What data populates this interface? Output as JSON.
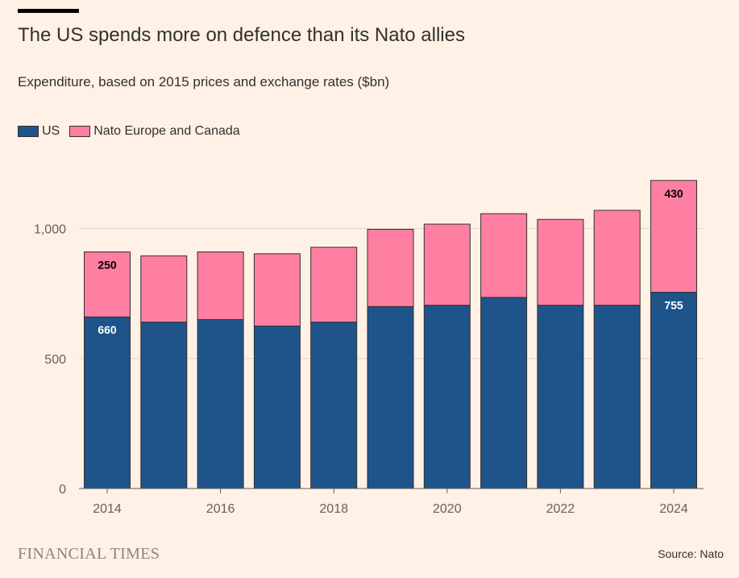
{
  "header": {
    "title": "The US spends more on defence than its Nato allies",
    "subtitle": "Expenditure, based on 2015 prices and exchange rates ($bn)"
  },
  "legend": [
    {
      "label": "US",
      "color": "#1F548B"
    },
    {
      "label": "Nato Europe and Canada",
      "color": "#FF7FA3"
    }
  ],
  "chart_data": {
    "type": "bar",
    "stacked": true,
    "categories": [
      2014,
      2015,
      2016,
      2017,
      2018,
      2019,
      2020,
      2021,
      2022,
      2023,
      2024
    ],
    "x_tick_labels": [
      "2014",
      "2016",
      "2018",
      "2020",
      "2022",
      "2024"
    ],
    "y_tick_labels": [
      "0",
      "500",
      "1,000"
    ],
    "ylim": [
      0,
      1200
    ],
    "y_ticks": [
      0,
      500,
      1000
    ],
    "grid": true,
    "legend_position": "top-left",
    "series": [
      {
        "name": "US",
        "color": "#1F548B",
        "values": [
          660,
          640,
          650,
          625,
          640,
          700,
          705,
          735,
          705,
          705,
          755
        ]
      },
      {
        "name": "Nato Europe and Canada",
        "color": "#FF7FA3",
        "values": [
          250,
          255,
          260,
          278,
          288,
          297,
          312,
          322,
          330,
          365,
          430
        ]
      }
    ],
    "data_labels": [
      {
        "series": 0,
        "index": 0,
        "text": "660"
      },
      {
        "series": 1,
        "index": 0,
        "text": "250"
      },
      {
        "series": 0,
        "index": 10,
        "text": "755"
      },
      {
        "series": 1,
        "index": 10,
        "text": "430"
      }
    ]
  },
  "footer": {
    "brand": "FINANCIAL TIMES",
    "source": "Source: Nato"
  }
}
